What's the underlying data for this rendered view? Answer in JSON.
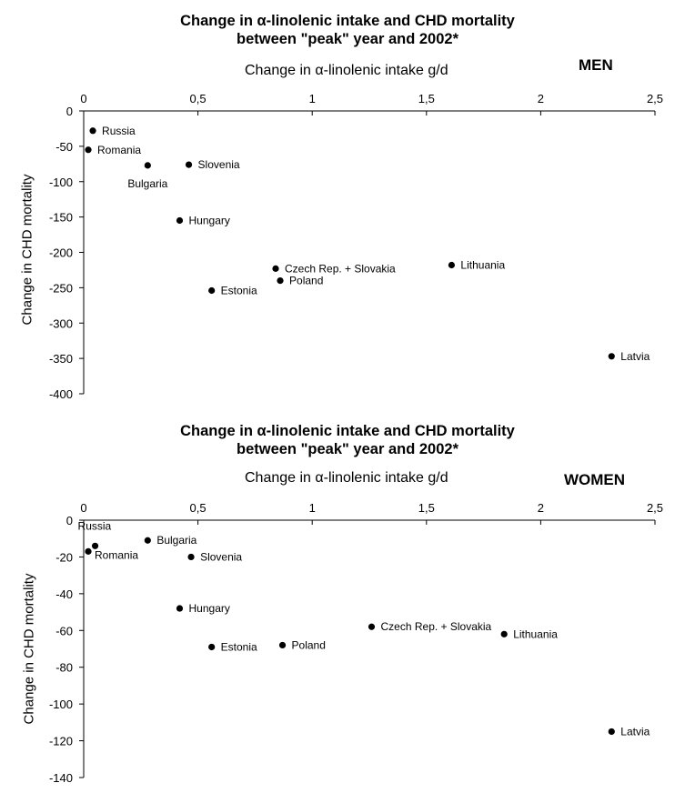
{
  "chart_data": [
    {
      "type": "scatter",
      "title_line1": "Change in α-linolenic intake and CHD mortality",
      "title_line2": "between \"peak\" year and 2002*",
      "panel_label": "MEN",
      "xlabel": "Change in α-linolenic intake g/d",
      "ylabel": "Change in CHD mortality",
      "xlim": [
        0,
        2.5
      ],
      "ylim": [
        -400,
        0
      ],
      "x_ticks": [
        "0",
        "0,5",
        "1",
        "1,5",
        "2",
        "2,5"
      ],
      "y_ticks": [
        "0",
        "-50",
        "-100",
        "-150",
        "-200",
        "-250",
        "-300",
        "-350",
        "-400"
      ],
      "grid": false,
      "points": [
        {
          "label": "Russia",
          "x": 0.04,
          "y": -28
        },
        {
          "label": "Romania",
          "x": 0.02,
          "y": -55
        },
        {
          "label": "Bulgaria",
          "x": 0.28,
          "y": -77
        },
        {
          "label": "Slovenia",
          "x": 0.46,
          "y": -76
        },
        {
          "label": "Hungary",
          "x": 0.42,
          "y": -155
        },
        {
          "label": "Czech Rep. + Slovakia",
          "x": 0.84,
          "y": -223
        },
        {
          "label": "Poland",
          "x": 0.86,
          "y": -240
        },
        {
          "label": "Estonia",
          "x": 0.56,
          "y": -254
        },
        {
          "label": "Lithuania",
          "x": 1.61,
          "y": -218
        },
        {
          "label": "Latvia",
          "x": 2.31,
          "y": -347
        }
      ]
    },
    {
      "type": "scatter",
      "title_line1": "Change in α-linolenic intake and CHD mortality",
      "title_line2": "between \"peak\" year and 2002*",
      "panel_label": "WOMEN",
      "xlabel": "Change in α-linolenic intake g/d",
      "ylabel": "Change in CHD mortality",
      "xlim": [
        0,
        2.5
      ],
      "ylim": [
        -140,
        0
      ],
      "x_ticks": [
        "0",
        "0,5",
        "1",
        "1,5",
        "2",
        "2,5"
      ],
      "y_ticks": [
        "0",
        "-20",
        "-40",
        "-60",
        "-80",
        "-100",
        "-120",
        "-140"
      ],
      "grid": false,
      "points": [
        {
          "label": "Russia",
          "x": 0.05,
          "y": -14
        },
        {
          "label": "Romania",
          "x": 0.02,
          "y": -17
        },
        {
          "label": "Bulgaria",
          "x": 0.28,
          "y": -11
        },
        {
          "label": "Slovenia",
          "x": 0.47,
          "y": -20
        },
        {
          "label": "Hungary",
          "x": 0.42,
          "y": -48
        },
        {
          "label": "Czech Rep. + Slovakia",
          "x": 1.26,
          "y": -58
        },
        {
          "label": "Lithuania",
          "x": 1.84,
          "y": -62
        },
        {
          "label": "Estonia",
          "x": 0.56,
          "y": -69
        },
        {
          "label": "Poland",
          "x": 0.87,
          "y": -68
        },
        {
          "label": "Latvia",
          "x": 2.31,
          "y": -115
        }
      ]
    }
  ]
}
